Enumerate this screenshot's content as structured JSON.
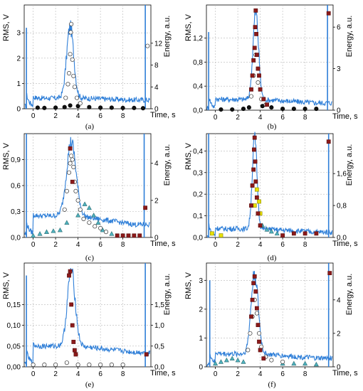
{
  "figure": {
    "colors": {
      "rms_line": "#2f7fd8",
      "energy_dark_red": "#8b1a1a",
      "energy_open": "#ffffff",
      "energy_cyan": "#4fb3bf",
      "energy_yellow": "#e8e000",
      "energy_black": "#111111",
      "marker_edge": "#333333"
    }
  },
  "chart_data": [
    {
      "panel": "(a)",
      "type": "line",
      "caption": "(a)",
      "xlabel": "Time, s",
      "ylabel_left": "RMS, V",
      "ylabel_right": "Energy, a.u.",
      "xlim": [
        -0.8,
        10.5
      ],
      "ylim_left": [
        0,
        4.1
      ],
      "ylim_right": [
        0,
        19
      ],
      "x_ticks": [
        0,
        2,
        4,
        6,
        8
      ],
      "y_ticks_left": [
        "0",
        "1",
        "2",
        "3"
      ],
      "y_ticks_right": [
        "0",
        "4",
        "8",
        "12"
      ],
      "y_ticks_left_values": [
        0,
        1,
        2,
        3
      ],
      "y_ticks_right_values": [
        0,
        4,
        8,
        12
      ],
      "grid": true,
      "rms": {
        "baseline": 0.25,
        "spikes": [
          {
            "x": -0.6,
            "y": 3.2
          },
          {
            "x": 10.0,
            "y": 4.1
          }
        ],
        "peak_center": 3.3,
        "peak_width": 0.45,
        "peak_height": 2.8,
        "tail": 0.42,
        "tail_end": 0.35
      },
      "energy_series": [
        {
          "style": "black_filled",
          "points": [
            [
              0.4,
              0.2
            ],
            [
              1.0,
              0.15
            ],
            [
              2.0,
              0.2
            ],
            [
              2.8,
              0.3
            ],
            [
              3.3,
              0.6
            ],
            [
              4.0,
              0.5
            ],
            [
              5.0,
              0.3
            ],
            [
              6.0,
              0.2
            ],
            [
              7.0,
              0.2
            ],
            [
              8.0,
              0.15
            ],
            [
              9.0,
              0.15
            ],
            [
              9.8,
              0.1
            ]
          ]
        },
        {
          "style": "open",
          "points": [
            [
              2.9,
              2.0
            ],
            [
              3.1,
              4.5
            ],
            [
              3.2,
              6.5
            ],
            [
              3.3,
              10.0
            ],
            [
              3.35,
              14.0
            ],
            [
              3.4,
              15.5
            ],
            [
              3.5,
              9.0
            ],
            [
              3.6,
              6.0
            ],
            [
              3.7,
              4.0
            ],
            [
              3.9,
              2.0
            ],
            [
              4.2,
              1.0
            ],
            [
              10.2,
              11.5
            ]
          ]
        }
      ]
    },
    {
      "panel": "(b)",
      "type": "line",
      "caption": "(b)",
      "xlabel": "Time, s",
      "ylabel_left": "RMS, V",
      "ylabel_right": "Energy, a.u.",
      "xlim": [
        -0.8,
        10.5
      ],
      "ylim_left": [
        0,
        1.75
      ],
      "ylim_right": [
        0,
        7.6
      ],
      "x_ticks": [
        0,
        2,
        4,
        6,
        8
      ],
      "y_ticks_left": [
        "0,0",
        "0,4",
        "0,8",
        "1,2"
      ],
      "y_ticks_right": [
        "0",
        "3",
        "6"
      ],
      "y_ticks_left_values": [
        0,
        0.4,
        0.8,
        1.2
      ],
      "y_ticks_right_values": [
        0,
        3,
        6
      ],
      "grid": true,
      "rms": {
        "baseline": 0.08,
        "spikes": [
          {
            "x": -0.6,
            "y": 1.3
          },
          {
            "x": 10.0,
            "y": 1.75
          }
        ],
        "peak_center": 3.6,
        "peak_width": 0.35,
        "peak_height": 1.45,
        "tail": 0.18,
        "tail_end": 0.12
      },
      "energy_series": [
        {
          "style": "black_filled",
          "points": [
            [
              0.5,
              0.05
            ],
            [
              1.5,
              0.05
            ],
            [
              2.5,
              0.1
            ],
            [
              3.0,
              0.2
            ],
            [
              4.2,
              0.3
            ],
            [
              5.0,
              0.2
            ],
            [
              6.0,
              0.1
            ],
            [
              7.0,
              0.1
            ],
            [
              8.0,
              0.1
            ],
            [
              9.0,
              0.1
            ]
          ]
        },
        {
          "style": "open",
          "points": [
            [
              3.2,
              1.0
            ],
            [
              3.4,
              2.5
            ],
            [
              3.6,
              4.0
            ],
            [
              3.8,
              2.0
            ],
            [
              4.1,
              0.8
            ],
            [
              4.5,
              0.4
            ]
          ]
        },
        {
          "style": "dark_red",
          "points": [
            [
              3.2,
              1.5
            ],
            [
              3.3,
              2.5
            ],
            [
              3.4,
              3.6
            ],
            [
              3.5,
              4.5
            ],
            [
              3.55,
              6.0
            ],
            [
              3.6,
              7.2
            ],
            [
              3.65,
              5.5
            ],
            [
              3.7,
              4.0
            ],
            [
              3.8,
              3.0
            ],
            [
              3.9,
              2.5
            ],
            [
              4.0,
              1.5
            ],
            [
              4.3,
              0.8
            ],
            [
              4.6,
              0.4
            ],
            [
              10.1,
              7.0
            ]
          ]
        }
      ]
    },
    {
      "panel": "(c)",
      "type": "line",
      "caption": "(c)",
      "xlabel": "Time, s",
      "ylabel_left": "RMS, V",
      "ylabel_right": "Energy, a.u.",
      "xlim": [
        -0.8,
        10.5
      ],
      "ylim_left": [
        0,
        1.2
      ],
      "ylim_right": [
        0,
        5.6
      ],
      "x_ticks": [
        0,
        2,
        4,
        6,
        8
      ],
      "y_ticks_left": [
        "0,0",
        "0,3",
        "0,6",
        "0,9"
      ],
      "y_ticks_right": [
        "0",
        "2",
        "4"
      ],
      "y_ticks_left_values": [
        0,
        0.3,
        0.6,
        0.9
      ],
      "y_ticks_right_values": [
        0,
        2,
        4
      ],
      "grid": true,
      "rms": {
        "baseline": 0.1,
        "spikes": [
          {
            "x": -0.6,
            "y": 1.2
          },
          {
            "x": 9.9,
            "y": 1.2
          }
        ],
        "peak_center": 3.4,
        "peak_width": 0.6,
        "peak_height": 0.85,
        "tail": 0.25,
        "tail_end": 0.15
      },
      "energy_series": [
        {
          "style": "cyan",
          "points": [
            [
              0.0,
              0.1
            ],
            [
              0.6,
              0.2
            ],
            [
              1.2,
              0.3
            ],
            [
              1.8,
              0.35
            ],
            [
              2.4,
              0.4
            ],
            [
              3.0,
              0.8
            ],
            [
              4.0,
              1.2
            ],
            [
              4.6,
              1.8
            ],
            [
              5.0,
              1.6
            ],
            [
              5.4,
              1.2
            ],
            [
              5.8,
              0.8
            ],
            [
              6.2,
              0.4
            ],
            [
              7.0,
              0.2
            ],
            [
              8.0,
              0.1
            ]
          ]
        },
        {
          "style": "open",
          "points": [
            [
              2.8,
              1.5
            ],
            [
              3.0,
              2.5
            ],
            [
              3.2,
              3.5
            ],
            [
              3.3,
              4.0
            ],
            [
              3.4,
              4.4
            ],
            [
              3.5,
              4.2
            ],
            [
              3.6,
              3.8
            ],
            [
              3.7,
              3.0
            ],
            [
              3.8,
              2.5
            ],
            [
              4.0,
              2.0
            ],
            [
              4.2,
              1.5
            ],
            [
              4.5,
              1.0
            ],
            [
              5.0,
              0.8
            ],
            [
              5.5,
              0.6
            ],
            [
              6.0,
              0.5
            ],
            [
              6.5,
              0.3
            ]
          ]
        },
        {
          "style": "dark_red",
          "points": [
            [
              3.3,
              4.8
            ],
            [
              3.5,
              3.0
            ],
            [
              7.5,
              0.1
            ],
            [
              8.0,
              0.1
            ],
            [
              8.5,
              0.1
            ],
            [
              9.0,
              0.1
            ],
            [
              9.5,
              0.1
            ],
            [
              10.0,
              1.6
            ]
          ]
        }
      ]
    },
    {
      "panel": "(d)",
      "type": "line",
      "caption": "(d)",
      "xlabel": "Time, s",
      "ylabel_left": "RMS, V",
      "ylabel_right": "Energy, a.u.",
      "xlim": [
        -0.8,
        10.5
      ],
      "ylim_left": [
        0,
        0.48
      ],
      "ylim_right": [
        0,
        2.6
      ],
      "x_ticks": [
        0,
        2,
        4,
        6,
        8
      ],
      "y_ticks_left": [
        "0,0",
        "0,1",
        "0,2",
        "0,3",
        "0,4"
      ],
      "y_ticks_right": [
        "0,0",
        "0,8",
        "1,6"
      ],
      "y_ticks_left_values": [
        0,
        0.1,
        0.2,
        0.3,
        0.4
      ],
      "y_ticks_right_values": [
        0,
        0.8,
        1.6
      ],
      "grid": true,
      "rms": {
        "baseline": 0.01,
        "spikes": [
          {
            "x": -0.6,
            "y": 0.48
          },
          {
            "x": 10.1,
            "y": 0.48
          }
        ],
        "peak_center": 3.5,
        "peak_width": 0.3,
        "peak_height": 0.42,
        "tail": 0.04,
        "tail_end": 0.025
      },
      "energy_series": [
        {
          "style": "yellow",
          "points": [
            [
              -0.3,
              0.1
            ],
            [
              0.5,
              0.05
            ],
            [
              3.5,
              0.8
            ],
            [
              3.7,
              1.2
            ],
            [
              3.9,
              0.9
            ],
            [
              4.0,
              0.6
            ]
          ]
        },
        {
          "style": "cyan",
          "points": [
            [
              4.2,
              0.3
            ],
            [
              4.6,
              0.2
            ],
            [
              5.0,
              0.15
            ],
            [
              5.5,
              0.1
            ]
          ]
        },
        {
          "style": "dark_red",
          "points": [
            [
              3.2,
              0.8
            ],
            [
              3.3,
              1.3
            ],
            [
              3.4,
              1.7
            ],
            [
              3.45,
              2.2
            ],
            [
              3.5,
              2.5
            ],
            [
              3.55,
              1.9
            ],
            [
              3.6,
              1.4
            ],
            [
              3.7,
              1.0
            ],
            [
              3.8,
              0.6
            ],
            [
              4.0,
              0.3
            ],
            [
              6.0,
              0.05
            ],
            [
              7.0,
              0.1
            ],
            [
              8.0,
              0.1
            ],
            [
              9.0,
              0.1
            ],
            [
              10.1,
              2.4
            ]
          ]
        }
      ]
    },
    {
      "panel": "(e)",
      "type": "line",
      "caption": "(e)",
      "xlabel": "Time, s",
      "ylabel_left": "RMS, V",
      "ylabel_right": "Energy, a.u.",
      "xlim": [
        -0.8,
        10.5
      ],
      "ylim_left": [
        0,
        0.25
      ],
      "ylim_right": [
        0,
        2.5
      ],
      "x_ticks": [
        0,
        2,
        4,
        6,
        8
      ],
      "y_ticks_left": [
        "0,00",
        "0,05",
        "0,10",
        "0,15"
      ],
      "y_ticks_right": [
        "0,0",
        "0,5",
        "1,0",
        "1,5"
      ],
      "y_ticks_left_values": [
        0,
        0.05,
        0.1,
        0.15
      ],
      "y_ticks_right_values": [
        0,
        0.5,
        1.0,
        1.5
      ],
      "grid": true,
      "rms": {
        "baseline": 0.02,
        "spikes": [
          {
            "x": -0.6,
            "y": 0.22
          },
          {
            "x": 10.0,
            "y": 0.25
          }
        ],
        "peak_center": 3.4,
        "peak_width": 0.5,
        "peak_height": 0.18,
        "tail": 0.05,
        "tail_end": 0.035
      },
      "energy_series": [
        {
          "style": "dark_red",
          "points": [
            [
              3.2,
              2.2
            ],
            [
              3.3,
              2.3
            ],
            [
              3.4,
              1.5
            ],
            [
              3.5,
              1.0
            ],
            [
              3.6,
              0.6
            ],
            [
              3.7,
              0.4
            ],
            [
              3.8,
              0.3
            ],
            [
              10.1,
              0.3
            ]
          ]
        },
        {
          "style": "open",
          "points": [
            [
              0.0,
              0.05
            ],
            [
              1.0,
              0.05
            ],
            [
              2.0,
              0.05
            ],
            [
              3.0,
              0.1
            ],
            [
              4.0,
              0.05
            ],
            [
              5.0,
              0.05
            ],
            [
              6.0,
              0.05
            ],
            [
              7.0,
              0.05
            ],
            [
              8.0,
              0.05
            ]
          ]
        }
      ]
    },
    {
      "panel": "(f)",
      "type": "line",
      "caption": "(f)",
      "xlabel": "Time, s",
      "ylabel_left": "RMS, V",
      "ylabel_right": "Energy, a.u.",
      "xlim": [
        -0.8,
        10.5
      ],
      "ylim_left": [
        0,
        3.6
      ],
      "ylim_right": [
        0,
        6.2
      ],
      "x_ticks": [
        0,
        2,
        4,
        6,
        8
      ],
      "y_ticks_left": [
        "0",
        "1",
        "2",
        "3"
      ],
      "y_ticks_right": [
        "0",
        "2",
        "4"
      ],
      "y_ticks_left_values": [
        0,
        1,
        2,
        3
      ],
      "y_ticks_right_values": [
        0,
        2,
        4
      ],
      "grid": true,
      "rms": {
        "baseline": 0.2,
        "spikes": [
          {
            "x": -0.5,
            "y": 3.0
          },
          {
            "x": 10.1,
            "y": 3.6
          }
        ],
        "peak_center": 3.5,
        "peak_width": 0.45,
        "peak_height": 2.8,
        "tail": 0.45,
        "tail_end": 0.3
      },
      "energy_series": [
        {
          "style": "cyan",
          "points": [
            [
              0.0,
              0.2
            ],
            [
              0.5,
              0.3
            ],
            [
              1.0,
              0.4
            ],
            [
              1.5,
              0.5
            ],
            [
              2.0,
              0.4
            ],
            [
              2.5,
              0.3
            ],
            [
              6.0,
              0.2
            ],
            [
              7.0,
              0.2
            ],
            [
              8.0,
              0.2
            ],
            [
              9.0,
              0.15
            ]
          ]
        },
        {
          "style": "open",
          "points": [
            [
              2.9,
              1.0
            ],
            [
              3.1,
              2.0
            ],
            [
              3.3,
              3.0
            ],
            [
              3.5,
              4.0
            ],
            [
              3.7,
              3.2
            ],
            [
              3.9,
              2.0
            ],
            [
              4.1,
              1.2
            ],
            [
              4.5,
              0.6
            ],
            [
              5.0,
              0.4
            ],
            [
              6.0,
              0.3
            ]
          ]
        },
        {
          "style": "dark_red",
          "points": [
            [
              3.2,
              3.0
            ],
            [
              3.3,
              4.0
            ],
            [
              3.4,
              5.0
            ],
            [
              3.5,
              5.4
            ],
            [
              3.6,
              4.5
            ],
            [
              3.7,
              3.5
            ],
            [
              3.8,
              2.5
            ],
            [
              3.9,
              1.5
            ],
            [
              4.0,
              1.0
            ],
            [
              4.3,
              0.5
            ],
            [
              10.2,
              5.6
            ]
          ]
        }
      ]
    }
  ]
}
